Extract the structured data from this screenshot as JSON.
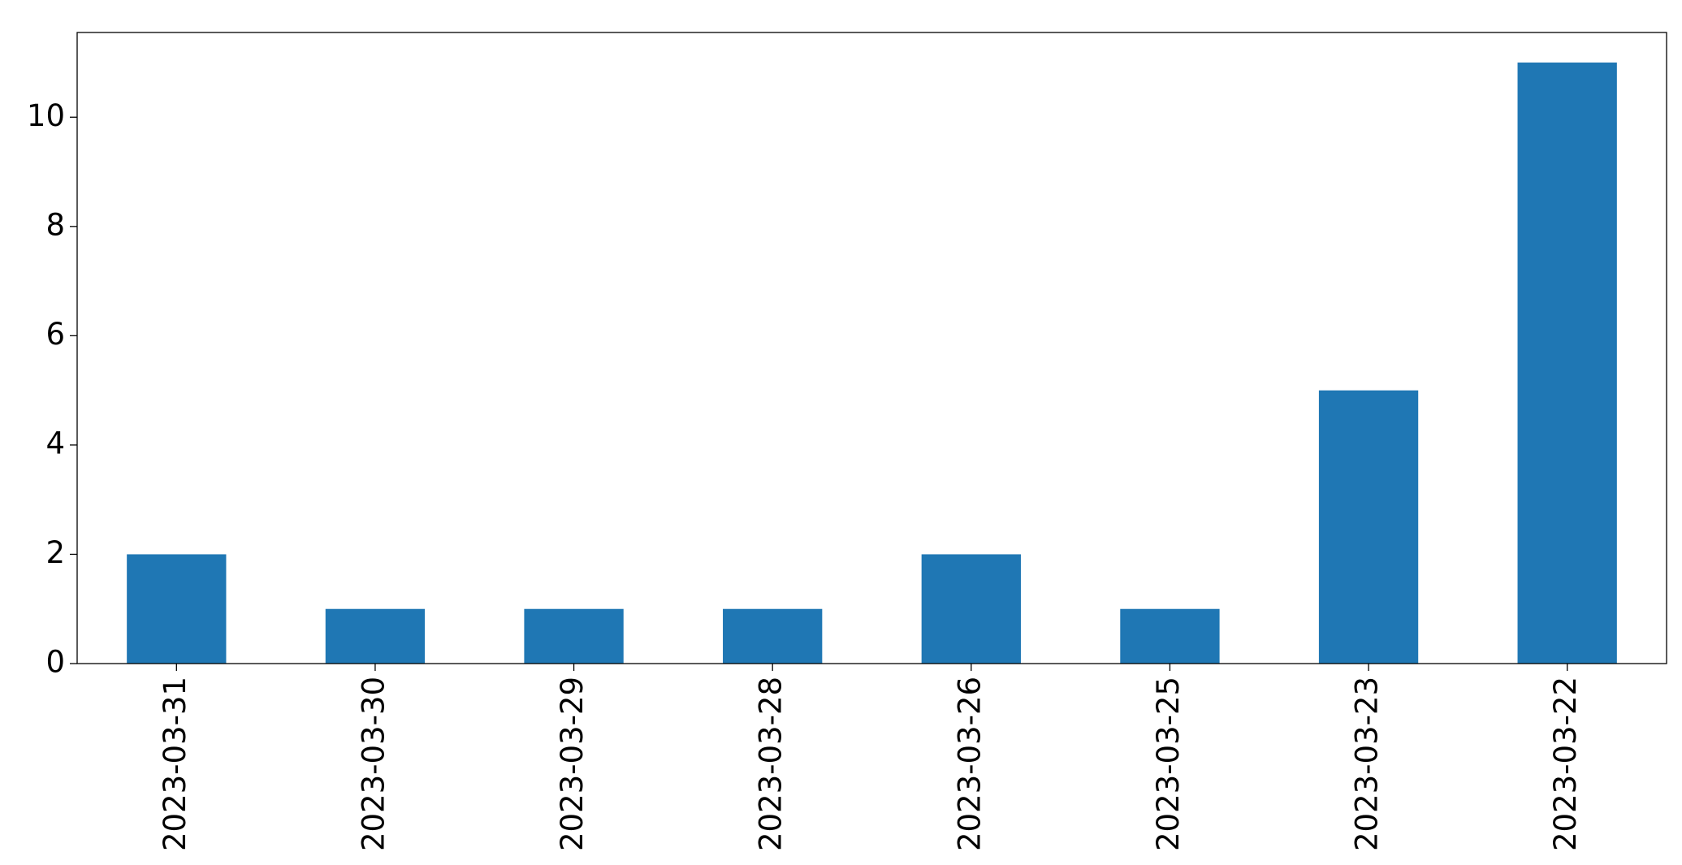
{
  "chart_data": {
    "type": "bar",
    "categories": [
      "2023-03-31",
      "2023-03-30",
      "2023-03-29",
      "2023-03-28",
      "2023-03-26",
      "2023-03-25",
      "2023-03-23",
      "2023-03-22"
    ],
    "values": [
      2,
      1,
      1,
      1,
      2,
      1,
      5,
      11
    ],
    "color": "#1f77b4",
    "ylim": [
      0,
      11.55
    ],
    "yticks": [
      0,
      2,
      4,
      6,
      8,
      10
    ],
    "grid": false
  }
}
